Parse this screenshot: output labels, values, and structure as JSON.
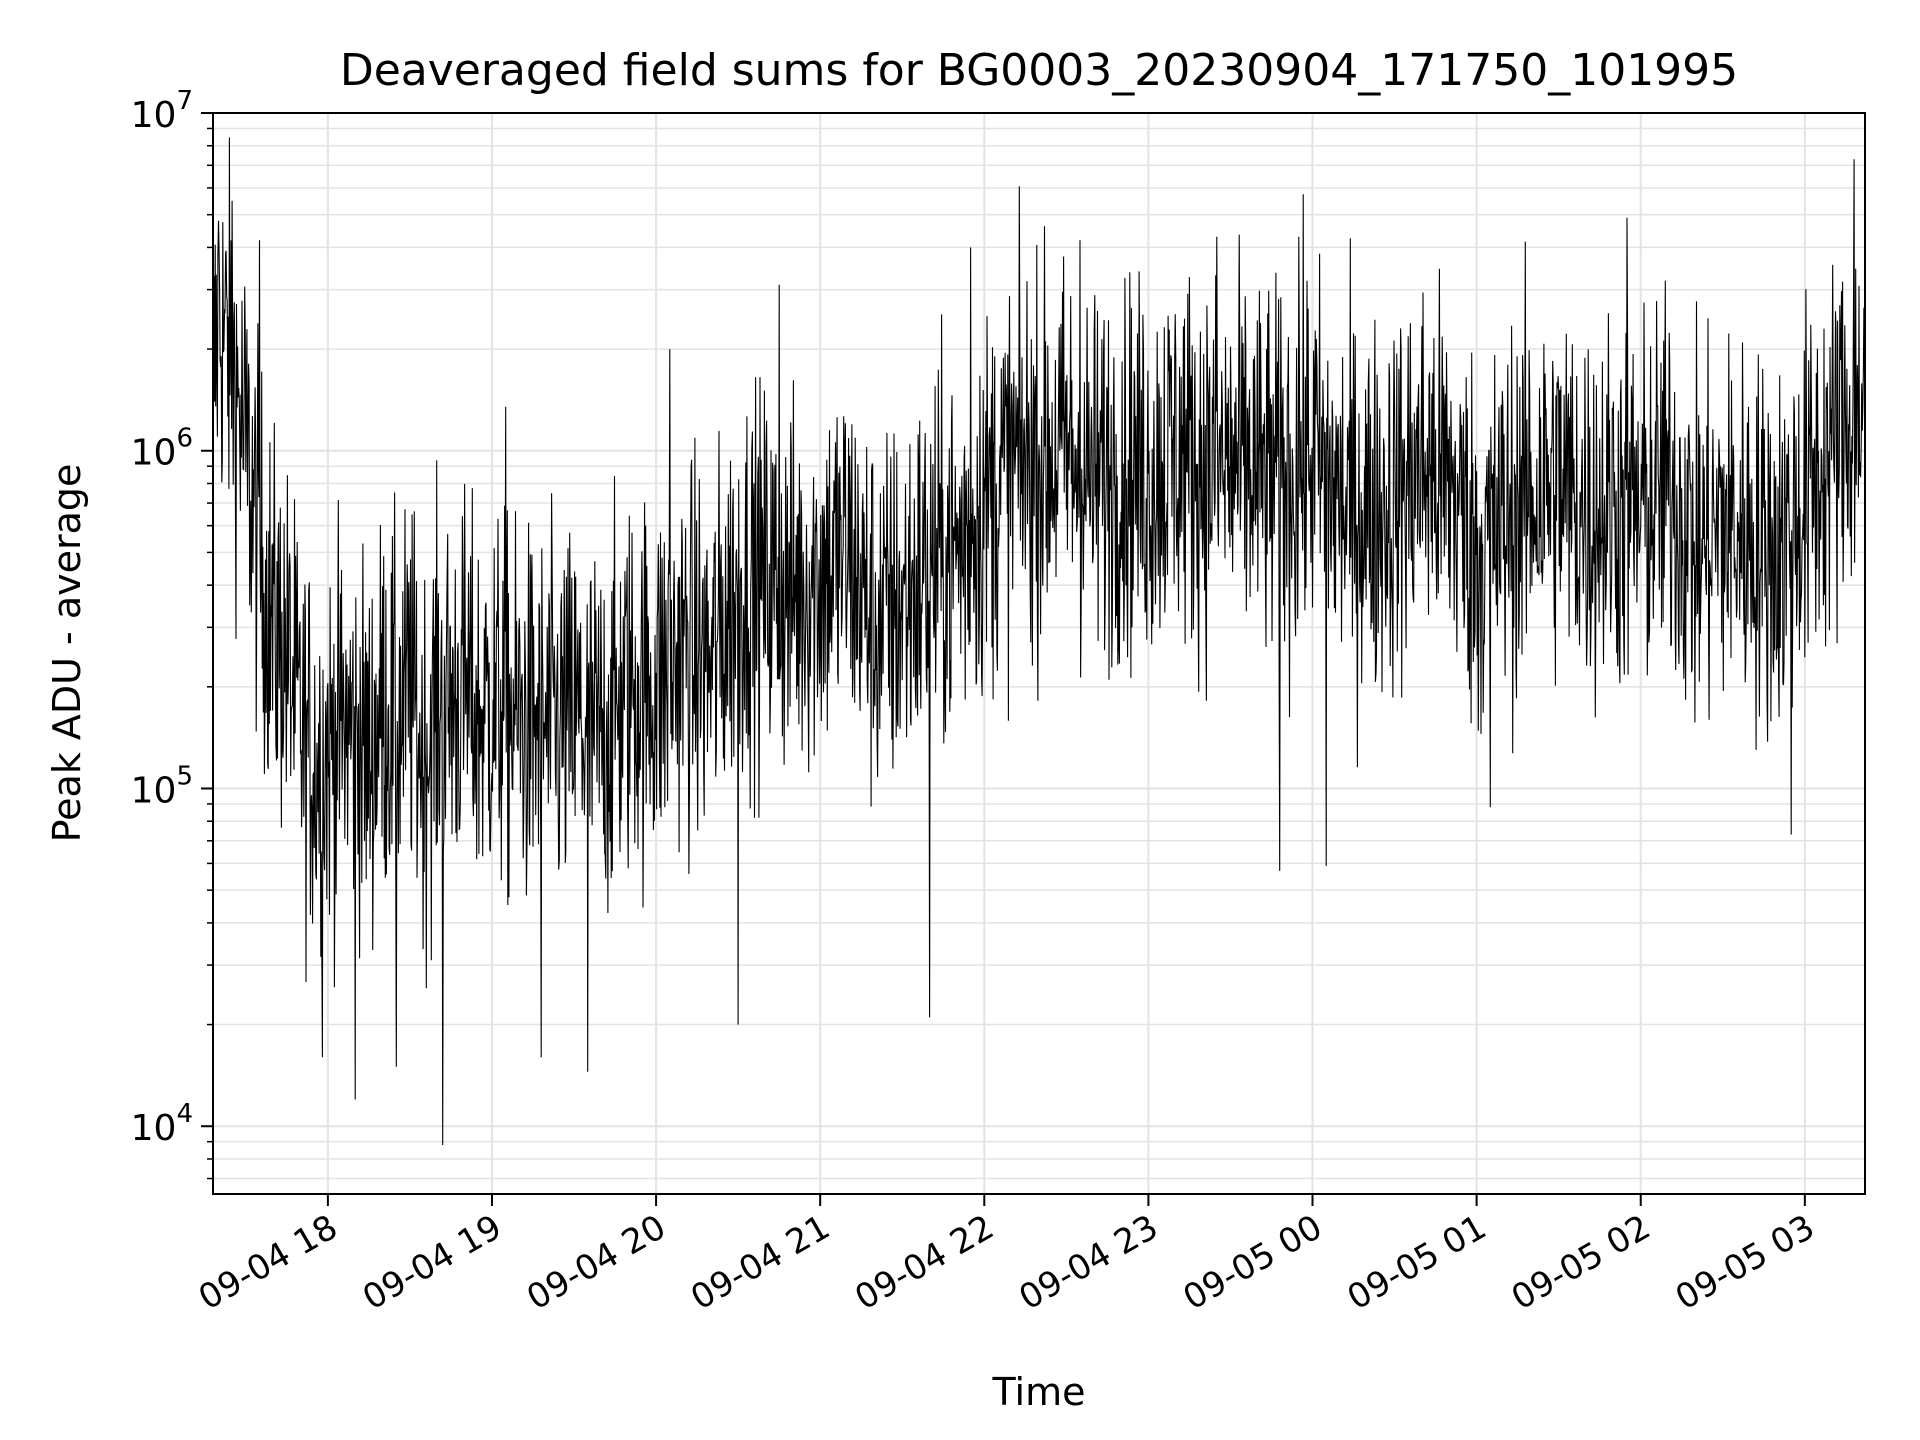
{
  "chart_data": {
    "type": "line",
    "title": "Deaveraged field sums for BG0003_20230904_171750_101995",
    "xlabel": "Time",
    "ylabel": "Peak ADU - average",
    "x_axis_kind": "time",
    "xlim": [
      "2023-09-04 17:18",
      "2023-09-05 03:22"
    ],
    "ylim": [
      6300,
      10000000
    ],
    "yscale": "log",
    "grid": true,
    "line_color": "#000000",
    "x_ticks": [
      {
        "t": "2023-09-04 18:00",
        "label": "09-04 18"
      },
      {
        "t": "2023-09-04 19:00",
        "label": "09-04 19"
      },
      {
        "t": "2023-09-04 20:00",
        "label": "09-04 20"
      },
      {
        "t": "2023-09-04 21:00",
        "label": "09-04 21"
      },
      {
        "t": "2023-09-04 22:00",
        "label": "09-04 22"
      },
      {
        "t": "2023-09-04 23:00",
        "label": "09-04 23"
      },
      {
        "t": "2023-09-05 00:00",
        "label": "09-05 00"
      },
      {
        "t": "2023-09-05 01:00",
        "label": "09-05 01"
      },
      {
        "t": "2023-09-05 02:00",
        "label": "09-05 02"
      },
      {
        "t": "2023-09-05 03:00",
        "label": "09-05 03"
      }
    ],
    "y_ticks": [
      {
        "value": 10000,
        "base": "10",
        "exp": "4"
      },
      {
        "value": 100000,
        "base": "10",
        "exp": "5"
      },
      {
        "value": 1000000,
        "base": "10",
        "exp": "6"
      },
      {
        "value": 10000000,
        "base": "10",
        "exp": "7"
      }
    ],
    "series": [
      {
        "color": "#000000",
        "x": [
          "2023-09-04 17:18",
          "2023-09-04 17:20",
          "2023-09-04 17:25",
          "2023-09-04 17:30",
          "2023-09-04 17:35",
          "2023-09-04 17:40",
          "2023-09-04 17:45",
          "2023-09-04 17:50",
          "2023-09-04 17:55",
          "2023-09-04 18:00",
          "2023-09-04 18:05",
          "2023-09-04 18:10",
          "2023-09-04 18:15",
          "2023-09-04 18:20",
          "2023-09-04 18:25",
          "2023-09-04 18:30",
          "2023-09-04 18:35",
          "2023-09-04 18:40",
          "2023-09-04 18:45",
          "2023-09-04 18:50",
          "2023-09-04 18:55",
          "2023-09-04 19:00",
          "2023-09-04 19:10",
          "2023-09-04 19:20",
          "2023-09-04 19:30",
          "2023-09-04 19:40",
          "2023-09-04 19:50",
          "2023-09-04 20:00",
          "2023-09-04 20:10",
          "2023-09-04 20:20",
          "2023-09-04 20:30",
          "2023-09-04 20:40",
          "2023-09-04 20:50",
          "2023-09-04 21:00",
          "2023-09-04 21:10",
          "2023-09-04 21:20",
          "2023-09-04 21:30",
          "2023-09-04 21:40",
          "2023-09-04 21:50",
          "2023-09-04 22:00",
          "2023-09-04 22:10",
          "2023-09-04 22:20",
          "2023-09-04 22:30",
          "2023-09-04 22:40",
          "2023-09-04 22:50",
          "2023-09-04 23:00",
          "2023-09-04 23:10",
          "2023-09-04 23:20",
          "2023-09-04 23:30",
          "2023-09-04 23:40",
          "2023-09-04 23:50",
          "2023-09-05 00:00",
          "2023-09-05 00:10",
          "2023-09-05 00:20",
          "2023-09-05 00:30",
          "2023-09-05 00:40",
          "2023-09-05 00:50",
          "2023-09-05 01:00",
          "2023-09-05 01:10",
          "2023-09-05 01:20",
          "2023-09-05 01:30",
          "2023-09-05 01:40",
          "2023-09-05 01:50",
          "2023-09-05 02:00",
          "2023-09-05 02:10",
          "2023-09-05 02:20",
          "2023-09-05 02:30",
          "2023-09-05 02:40",
          "2023-09-05 02:50",
          "2023-09-05 03:00",
          "2023-09-05 03:10",
          "2023-09-05 03:22"
        ],
        "y": [
          1500000,
          2500000,
          1800000,
          1000000,
          500000,
          300000,
          250000,
          150000,
          120000,
          130000,
          150000,
          150000,
          120000,
          180000,
          150000,
          200000,
          120000,
          180000,
          180000,
          200000,
          160000,
          180000,
          160000,
          150000,
          160000,
          140000,
          200000,
          200000,
          260000,
          230000,
          400000,
          420000,
          380000,
          430000,
          500000,
          300000,
          350000,
          450000,
          500000,
          700000,
          900000,
          950000,
          1000000,
          800000,
          900000,
          850000,
          1000000,
          900000,
          900000,
          850000,
          800000,
          1000000,
          700000,
          650000,
          700000,
          900000,
          800000,
          500000,
          600000,
          750000,
          800000,
          650000,
          700000,
          650000,
          800000,
          500000,
          600000,
          550000,
          500000,
          700000,
          1000000,
          1500000
        ],
        "spikes_high": [
          [
            "2023-09-04 17:20",
            4800000
          ],
          [
            "2023-09-04 17:25",
            5500000
          ],
          [
            "2023-09-04 17:35",
            4200000
          ],
          [
            "2023-09-04 19:05",
            1350000
          ],
          [
            "2023-09-04 20:05",
            2000000
          ],
          [
            "2023-09-04 20:45",
            3100000
          ],
          [
            "2023-09-04 21:55",
            4000000
          ],
          [
            "2023-09-04 22:35",
            4200000
          ],
          [
            "2023-09-04 23:25",
            4300000
          ],
          [
            "2023-09-04 23:55",
            4300000
          ],
          [
            "2023-09-05 01:55",
            4900000
          ],
          [
            "2023-09-05 03:18",
            7300000
          ]
        ],
        "spikes_low": [
          [
            "2023-09-04 17:58",
            16000
          ],
          [
            "2023-09-04 18:10",
            12000
          ],
          [
            "2023-09-04 18:25",
            15000
          ],
          [
            "2023-09-04 18:42",
            8800
          ],
          [
            "2023-09-04 19:18",
            16000
          ],
          [
            "2023-09-04 19:35",
            14500
          ],
          [
            "2023-09-04 20:30",
            20000
          ],
          [
            "2023-09-04 21:40",
            21000
          ],
          [
            "2023-09-04 23:48",
            57000
          ],
          [
            "2023-09-05 00:05",
            59000
          ],
          [
            "2023-09-05 01:05",
            88000
          ],
          [
            "2023-09-05 02:55",
            73000
          ]
        ]
      }
    ]
  }
}
